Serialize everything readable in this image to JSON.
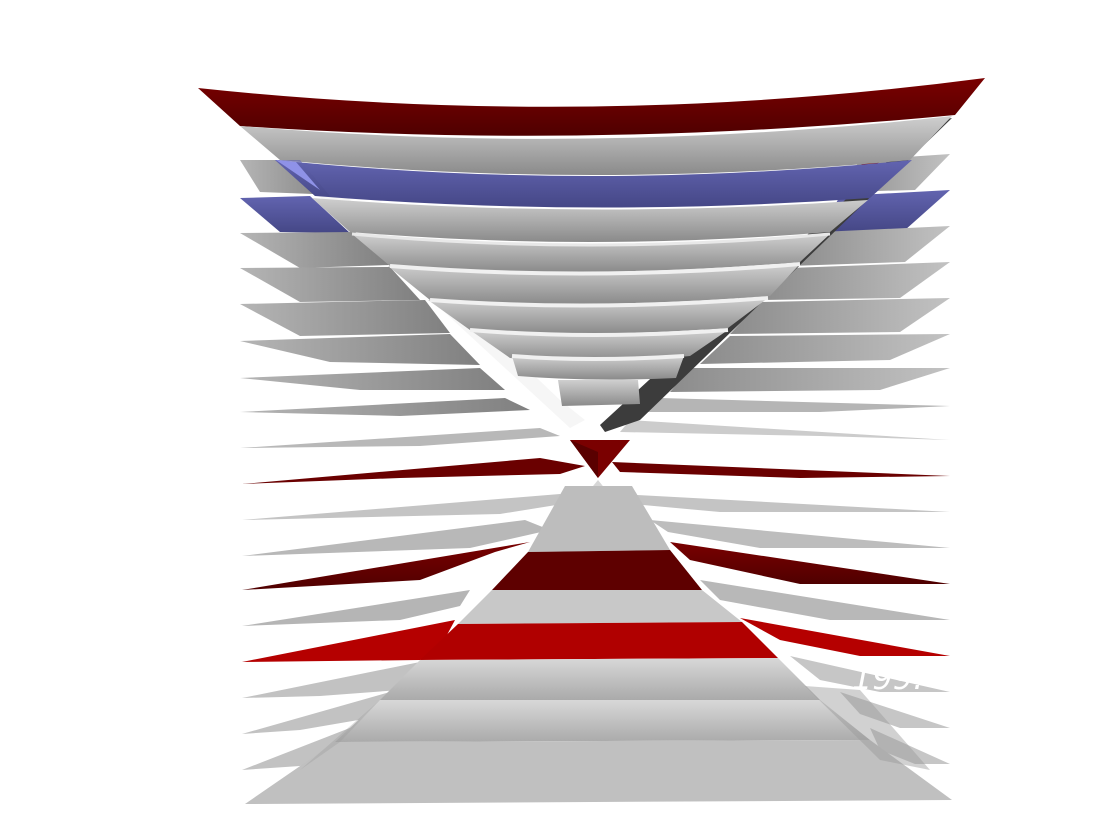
{
  "scene": {
    "label_text": "199.",
    "colors": {
      "background": "#ffffff",
      "gray_light": "#d4d4d4",
      "gray_mid": "#a8a8a8",
      "gray_dark": "#7f7f7f",
      "dark_red": "#5e0000",
      "bright_red": "#b40000",
      "blue": "#4f5196",
      "blue_light": "#8e90e6"
    }
  }
}
